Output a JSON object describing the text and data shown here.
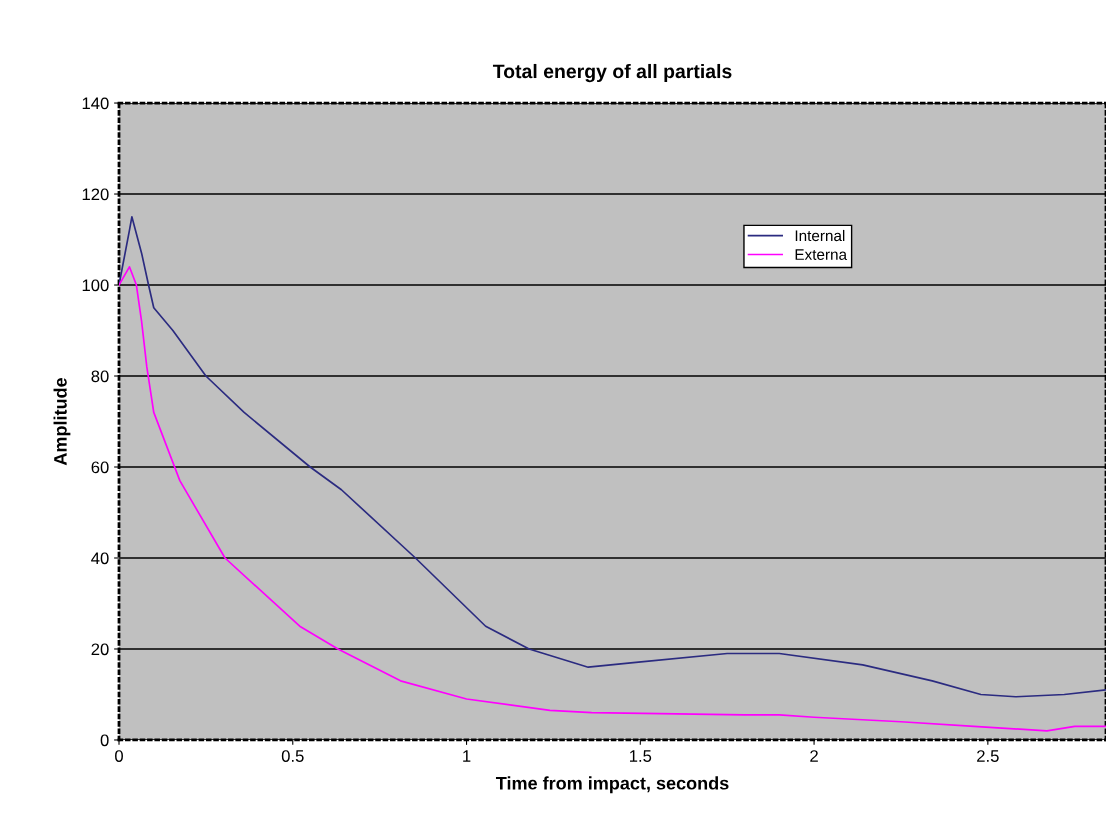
{
  "chart_data": {
    "type": "line",
    "title": "Total energy of all partials",
    "xlabel": "Time from impact, seconds",
    "ylabel": "Amplitude",
    "xlim": [
      0,
      2.84
    ],
    "xticks": [
      0,
      0.5,
      1,
      1.5,
      2,
      2.5
    ],
    "ylim": [
      0,
      140
    ],
    "yticks": [
      0,
      20,
      40,
      60,
      80,
      100,
      120,
      140
    ],
    "grid": "y",
    "legend": "top right",
    "marker": "none",
    "line_style": "solid",
    "series": [
      {
        "name": "Internal",
        "color": "#2b2b80",
        "x": [
          0,
          0.03,
          0.037,
          0.065,
          0.085,
          0.1,
          0.155,
          0.25,
          0.36,
          0.55,
          0.64,
          0.853,
          1.055,
          1.18,
          1.35,
          1.48,
          1.75,
          1.9,
          2.14,
          2.34,
          2.48,
          2.58,
          2.72,
          2.84
        ],
        "values": [
          100,
          112,
          115,
          107,
          100,
          95,
          90,
          80,
          72,
          60,
          55,
          40,
          25,
          20,
          16,
          17,
          19,
          19,
          16.5,
          13,
          10,
          9.5,
          10,
          11
        ]
      },
      {
        "name": "Externa",
        "color": "#ff00ff",
        "x": [
          0,
          0.03,
          0.05,
          0.065,
          0.08,
          0.1,
          0.175,
          0.305,
          0.52,
          0.63,
          0.81,
          1.0,
          1.24,
          1.36,
          1.8,
          1.9,
          2.0,
          2.25,
          2.46,
          2.67,
          2.75,
          2.84
        ],
        "values": [
          100,
          104,
          100,
          92,
          82,
          72,
          57,
          40,
          25,
          20,
          13,
          9,
          6.5,
          6,
          5.5,
          5.5,
          5,
          4,
          3,
          2,
          3,
          3
        ]
      }
    ]
  }
}
